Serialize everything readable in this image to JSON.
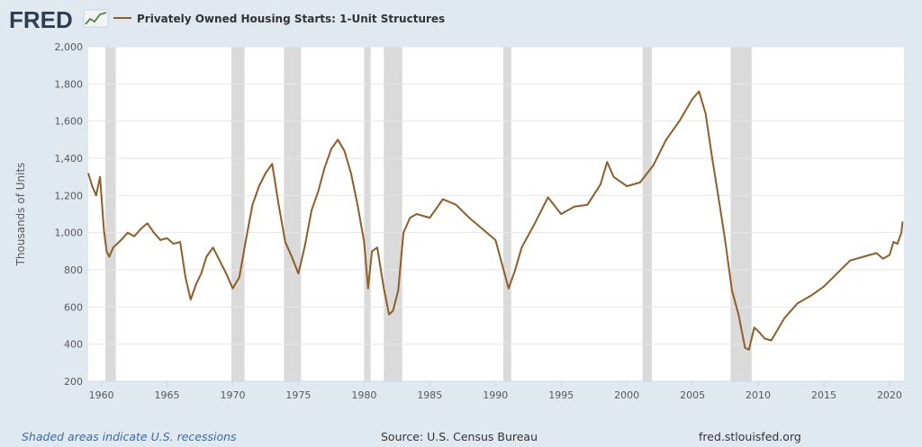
{
  "brand": {
    "logo_text": "FRED",
    "colors": {
      "logo": "#2c3e50",
      "line": "#8f5d27",
      "recession": "#dadada",
      "plot_bg": "#ffffff",
      "page_bg": "#e1e9f0"
    }
  },
  "legend": {
    "label": "Privately Owned Housing Starts: 1-Unit Structures"
  },
  "footer": {
    "shaded_note": "Shaded areas indicate U.S. recessions",
    "source": "Source: U.S. Census Bureau",
    "url": "fred.stlouisfed.org"
  },
  "chart_data": {
    "type": "line",
    "title": "Privately Owned Housing Starts: 1-Unit Structures",
    "ylabel": "Thousands of Units",
    "xlabel": "",
    "xlim": [
      1959.0,
      2021.1
    ],
    "ylim": [
      200,
      2000
    ],
    "x_ticks": [
      1960,
      1965,
      1970,
      1975,
      1980,
      1985,
      1990,
      1995,
      2000,
      2005,
      2010,
      2015,
      2020
    ],
    "y_ticks": [
      200,
      400,
      600,
      800,
      1000,
      1200,
      1400,
      1600,
      1800,
      2000
    ],
    "y_tick_labels": [
      "200",
      "400",
      "600",
      "800",
      "1,000",
      "1,200",
      "1,400",
      "1,600",
      "1,800",
      "2,000"
    ],
    "grid": true,
    "legend_position": "top-left",
    "recessions": [
      [
        1960.3,
        1961.1
      ],
      [
        1969.9,
        1970.9
      ],
      [
        1973.9,
        1975.2
      ],
      [
        1980.0,
        1980.5
      ],
      [
        1981.5,
        1982.9
      ],
      [
        1990.6,
        1991.2
      ],
      [
        2001.2,
        2001.9
      ],
      [
        2007.9,
        2009.5
      ]
    ],
    "series": [
      {
        "name": "Privately Owned Housing Starts: 1-Unit Structures",
        "x": [
          1959.0,
          1959.3,
          1959.6,
          1959.9,
          1960.2,
          1960.4,
          1960.6,
          1960.9,
          1961.2,
          1961.5,
          1962.0,
          1962.5,
          1963.0,
          1963.5,
          1964.0,
          1964.5,
          1965.0,
          1965.5,
          1966.0,
          1966.4,
          1966.8,
          1967.2,
          1967.6,
          1968.0,
          1968.5,
          1969.0,
          1969.5,
          1970.0,
          1970.5,
          1971.0,
          1971.5,
          1972.0,
          1972.5,
          1973.0,
          1973.5,
          1974.0,
          1974.5,
          1975.0,
          1975.5,
          1976.0,
          1976.5,
          1977.0,
          1977.5,
          1978.0,
          1978.5,
          1979.0,
          1979.5,
          1980.0,
          1980.3,
          1980.6,
          1981.0,
          1981.5,
          1981.9,
          1982.2,
          1982.6,
          1983.0,
          1983.5,
          1984.0,
          1985.0,
          1986.0,
          1987.0,
          1988.0,
          1989.0,
          1990.0,
          1990.5,
          1991.0,
          1991.5,
          1992.0,
          1993.0,
          1994.0,
          1995.0,
          1996.0,
          1997.0,
          1998.0,
          1998.5,
          1999.0,
          2000.0,
          2001.0,
          2002.0,
          2003.0,
          2004.0,
          2005.0,
          2005.5,
          2006.0,
          2006.5,
          2007.0,
          2007.5,
          2008.0,
          2008.5,
          2009.0,
          2009.3,
          2009.7,
          2010.0,
          2010.5,
          2011.0,
          2012.0,
          2013.0,
          2014.0,
          2015.0,
          2016.0,
          2017.0,
          2018.0,
          2019.0,
          2019.5,
          2020.0,
          2020.3,
          2020.6,
          2020.9,
          2021.0
        ],
        "values": [
          1320,
          1250,
          1200,
          1300,
          1010,
          900,
          870,
          920,
          940,
          960,
          1000,
          980,
          1020,
          1050,
          1000,
          960,
          970,
          940,
          950,
          760,
          640,
          720,
          780,
          870,
          920,
          850,
          780,
          700,
          760,
          960,
          1150,
          1250,
          1320,
          1370,
          1150,
          950,
          870,
          780,
          930,
          1120,
          1220,
          1350,
          1450,
          1500,
          1440,
          1320,
          1150,
          950,
          700,
          900,
          920,
          700,
          560,
          580,
          690,
          1000,
          1080,
          1100,
          1080,
          1180,
          1150,
          1080,
          1020,
          960,
          830,
          700,
          800,
          920,
          1050,
          1190,
          1100,
          1140,
          1150,
          1260,
          1380,
          1300,
          1250,
          1270,
          1360,
          1500,
          1600,
          1720,
          1760,
          1640,
          1400,
          1180,
          950,
          690,
          560,
          380,
          370,
          490,
          470,
          430,
          420,
          540,
          620,
          660,
          710,
          780,
          850,
          870,
          890,
          860,
          880,
          950,
          940,
          1000,
          1060
        ]
      }
    ]
  }
}
